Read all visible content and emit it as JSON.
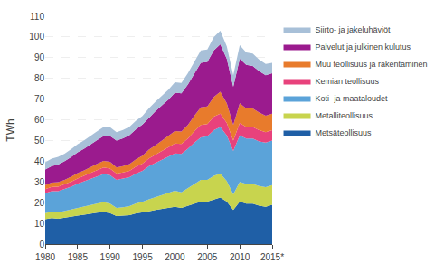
{
  "chart_data": {
    "type": "area",
    "stacked": true,
    "ylabel": "TWh",
    "x": [
      1980,
      1981,
      1982,
      1983,
      1984,
      1985,
      1986,
      1987,
      1988,
      1989,
      1990,
      1991,
      1992,
      1993,
      1994,
      1995,
      1996,
      1997,
      1998,
      1999,
      2000,
      2001,
      2002,
      2003,
      2004,
      2005,
      2006,
      2007,
      2008,
      2009,
      2010,
      2011,
      2012,
      2013,
      2014,
      2015
    ],
    "series": [
      {
        "name": "Metsäteollisuus",
        "color": "#1f5fa6",
        "values": [
          12,
          12.5,
          12.2,
          12.8,
          13.2,
          13.8,
          14.2,
          14.8,
          15.2,
          15.5,
          15.0,
          13.5,
          13.8,
          14.0,
          14.8,
          15.2,
          15.8,
          16.5,
          17.0,
          17.5,
          18.0,
          17.5,
          18.5,
          19.5,
          20.5,
          20.5,
          21.5,
          22.5,
          20.5,
          16.5,
          20.5,
          19.5,
          19.5,
          18.5,
          18.0,
          19.0
        ]
      },
      {
        "name": "Metalliteollisuus",
        "color": "#c8d44e",
        "values": [
          3.0,
          3.2,
          3.1,
          3.2,
          3.5,
          3.8,
          4.0,
          4.2,
          4.5,
          4.8,
          4.5,
          4.0,
          4.0,
          4.3,
          4.8,
          5.2,
          5.8,
          6.2,
          6.8,
          7.2,
          7.8,
          7.5,
          8.5,
          9.5,
          10.5,
          10.5,
          11.5,
          11.5,
          10.0,
          7.5,
          9.5,
          9.5,
          9.5,
          9.5,
          9.5,
          9.5
        ]
      },
      {
        "name": "Koti- ja maataloudet",
        "color": "#5ba3d9",
        "values": [
          9.5,
          9.8,
          10.2,
          10.5,
          11.0,
          11.5,
          12.0,
          12.5,
          13.0,
          13.5,
          13.8,
          13.5,
          13.8,
          14.0,
          14.5,
          15.0,
          16.0,
          16.5,
          17.0,
          17.5,
          18.0,
          18.5,
          19.0,
          20.0,
          20.5,
          21.0,
          22.0,
          22.5,
          22.0,
          21.0,
          22.5,
          22.0,
          22.0,
          21.5,
          21.5,
          21.5
        ]
      },
      {
        "name": "Kemian teollisuus",
        "color": "#e8427c",
        "values": [
          2.0,
          2.1,
          2.2,
          2.3,
          2.4,
          2.6,
          2.7,
          2.9,
          3.0,
          3.2,
          3.2,
          3.0,
          3.0,
          3.1,
          3.3,
          3.5,
          3.8,
          4.0,
          4.2,
          4.5,
          4.8,
          4.8,
          5.0,
          5.5,
          6.0,
          6.0,
          6.5,
          6.5,
          6.0,
          5.0,
          6.0,
          5.5,
          5.5,
          5.5,
          5.0,
          5.0
        ]
      },
      {
        "name": "Muu teollisuus ja rakentaminen",
        "color": "#e87b2c",
        "values": [
          2.0,
          2.1,
          2.2,
          2.2,
          2.4,
          2.6,
          2.7,
          2.9,
          3.0,
          3.2,
          3.2,
          3.0,
          3.0,
          3.2,
          3.5,
          3.8,
          4.2,
          4.5,
          5.0,
          5.5,
          6.0,
          6.0,
          6.5,
          7.5,
          8.5,
          8.5,
          9.5,
          10.5,
          9.5,
          7.5,
          9.5,
          9.0,
          9.0,
          8.5,
          8.0,
          8.0
        ]
      },
      {
        "name": "Palvelut ja julkinen kulutus",
        "color": "#9b1b8e",
        "values": [
          7.5,
          8.0,
          8.5,
          9.0,
          9.5,
          10.0,
          10.5,
          11.0,
          11.5,
          12.0,
          12.5,
          13.0,
          13.5,
          14.0,
          14.5,
          15.0,
          15.5,
          16.5,
          17.0,
          17.5,
          18.5,
          18.5,
          19.5,
          20.5,
          21.5,
          21.5,
          22.5,
          23.0,
          21.5,
          18.5,
          21.5,
          21.0,
          20.5,
          20.0,
          19.5,
          19.5
        ]
      },
      {
        "name": "Siirto- ja jakeluhäviöt",
        "color": "#a8c0d8",
        "values": [
          3.5,
          3.6,
          3.7,
          3.7,
          3.8,
          3.9,
          4.0,
          4.1,
          4.2,
          4.3,
          4.2,
          4.0,
          4.0,
          4.0,
          4.2,
          4.2,
          4.5,
          4.5,
          4.8,
          4.8,
          5.0,
          5.0,
          5.5,
          5.5,
          6.0,
          6.0,
          6.5,
          6.5,
          6.0,
          5.5,
          6.5,
          6.0,
          6.0,
          5.5,
          5.5,
          5.0
        ]
      }
    ],
    "xlim": [
      1980,
      2015
    ],
    "xticks": [
      1980,
      1985,
      1990,
      1995,
      2000,
      2005,
      2010,
      {
        "value": 2015,
        "label": "2015*"
      }
    ],
    "ylim": [
      0,
      110
    ],
    "yticks": [
      0,
      10,
      20,
      30,
      40,
      50,
      60,
      70,
      80,
      90,
      100,
      110
    ],
    "grid": true,
    "legend": "right"
  }
}
